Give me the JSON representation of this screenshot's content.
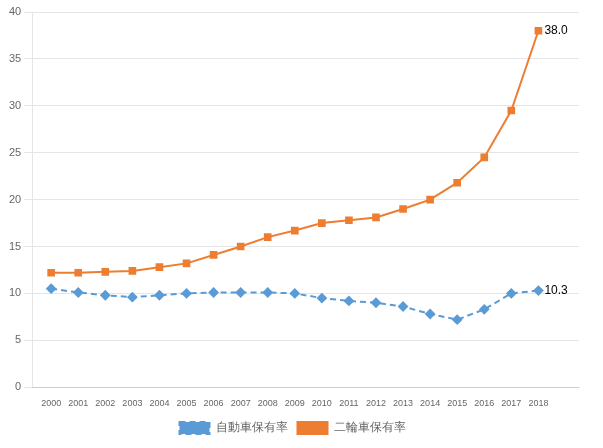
{
  "chart_data": {
    "type": "line",
    "x": [
      2000,
      2001,
      2002,
      2003,
      2004,
      2005,
      2006,
      2007,
      2008,
      2009,
      2010,
      2011,
      2012,
      2013,
      2014,
      2015,
      2016,
      2017,
      2018
    ],
    "series": [
      {
        "name": "自動車保有率",
        "color": "#5b9bd5",
        "marker": "diamond",
        "line_style": "dashed",
        "values": [
          10.5,
          10.1,
          9.8,
          9.6,
          9.8,
          10.0,
          10.1,
          10.1,
          10.1,
          10.0,
          9.5,
          9.2,
          9.0,
          8.6,
          7.8,
          7.2,
          8.3,
          10.0,
          10.3
        ]
      },
      {
        "name": "二輪車保有率",
        "color": "#ed7d31",
        "marker": "square",
        "line_style": "solid",
        "values": [
          12.2,
          12.2,
          12.3,
          12.4,
          12.8,
          13.2,
          14.1,
          15.0,
          16.0,
          16.7,
          17.5,
          17.8,
          18.1,
          19.0,
          20.0,
          21.8,
          24.5,
          29.5,
          38.0
        ]
      }
    ],
    "annotations": [
      {
        "text": "38.0",
        "x": 2018,
        "y": 38.0
      },
      {
        "text": "10.3",
        "x": 2018,
        "y": 10.3
      }
    ],
    "xlim": [
      1999.3,
      2019.5
    ],
    "xticks": [
      2000,
      2001,
      2002,
      2003,
      2004,
      2005,
      2006,
      2007,
      2008,
      2009,
      2010,
      2011,
      2012,
      2013,
      2014,
      2015,
      2016,
      2017,
      2018
    ],
    "ylim": [
      0,
      40
    ],
    "yticks": [
      0,
      5,
      10,
      15,
      20,
      25,
      30,
      35,
      40
    ],
    "grid": "y",
    "legend": "bottom"
  }
}
